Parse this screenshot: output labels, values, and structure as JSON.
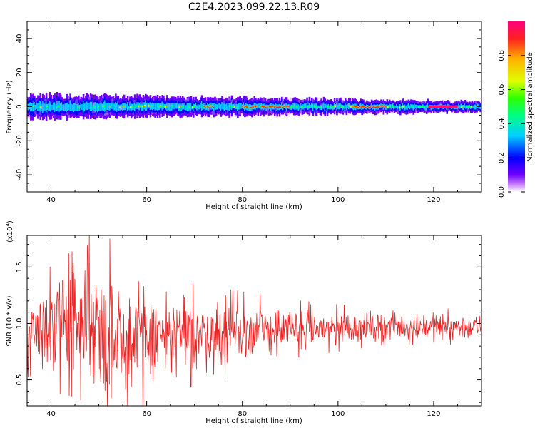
{
  "title": "C2E4.2023.099.22.13.R09",
  "chart_data": [
    {
      "type": "heatmap",
      "xlabel": "Height of straight line (km)",
      "ylabel": "Frequency (Hz)",
      "xlim": [
        35,
        130
      ],
      "ylim": [
        -50,
        50
      ],
      "xticks": [
        40,
        60,
        80,
        100,
        120
      ],
      "yticks": [
        -40,
        -20,
        0,
        20,
        40
      ],
      "xtick_labels": [
        "40",
        "60",
        "80",
        "100",
        "120"
      ],
      "ytick_labels": [
        "-40",
        "-20",
        "0",
        "20",
        "40"
      ],
      "grid": false,
      "description_band": {
        "center_hz": 0,
        "halfwidth_hz_start": 7,
        "halfwidth_hz_end": 3,
        "hot_segments_km": [
          [
            72,
            74
          ],
          [
            80,
            83
          ],
          [
            84,
            90
          ],
          [
            103,
            107
          ],
          [
            107,
            110
          ],
          [
            119,
            125
          ]
        ]
      },
      "colorbar": {
        "label": "Normalized spectral amplitude",
        "range": [
          0,
          1
        ],
        "ticks": [
          0.0,
          0.2,
          0.4,
          0.6,
          0.8
        ],
        "tick_labels": [
          "0.0",
          "0.2",
          "0.4",
          "0.6",
          "0.8"
        ],
        "colors": [
          "#ffffff",
          "#cc88ff",
          "#7000ff",
          "#0000ff",
          "#00d0ff",
          "#00ff80",
          "#30ff00",
          "#e0ff00",
          "#ffb000",
          "#ff2020",
          "#ff0080"
        ]
      }
    },
    {
      "type": "line",
      "xlabel": "Height of straight line (km)",
      "ylabel": "SNR (10 * v/v)",
      "yscale_label": "(x10",
      "yscale_exp": "4",
      "yscale_close": ")",
      "xlim": [
        35,
        130
      ],
      "ylim": [
        0.27,
        1.78
      ],
      "xticks": [
        40,
        60,
        80,
        100,
        120
      ],
      "yticks": [
        0.5,
        1.0,
        1.5
      ],
      "xtick_labels": [
        "40",
        "60",
        "80",
        "100",
        "120"
      ],
      "ytick_labels": [
        "0.5",
        "1.0",
        "1.5"
      ],
      "grid": false,
      "series": [
        {
          "color": "#ee2222",
          "envelope": [
            {
              "x": 35,
              "upper": 1.3,
              "lower": 0.55
            },
            {
              "x": 45,
              "upper": 1.5,
              "lower": 0.5
            },
            {
              "x": 50,
              "upper": 1.55,
              "lower": 0.4
            },
            {
              "x": 55,
              "upper": 1.45,
              "lower": 0.35
            },
            {
              "x": 60,
              "upper": 1.3,
              "lower": 0.45
            },
            {
              "x": 70,
              "upper": 1.25,
              "lower": 0.55
            },
            {
              "x": 80,
              "upper": 1.2,
              "lower": 0.65
            },
            {
              "x": 90,
              "upper": 1.15,
              "lower": 0.75
            },
            {
              "x": 100,
              "upper": 1.12,
              "lower": 0.8
            },
            {
              "x": 110,
              "upper": 1.1,
              "lower": 0.85
            },
            {
              "x": 120,
              "upper": 1.1,
              "lower": 0.85
            },
            {
              "x": 130,
              "upper": 1.08,
              "lower": 0.85
            }
          ],
          "peaks": [
            {
              "x": 48.0,
              "y": 1.78
            },
            {
              "x": 52.3,
              "y": 1.75
            },
            {
              "x": 52.6,
              "y": 0.34
            },
            {
              "x": 59.2,
              "y": 0.27
            },
            {
              "x": 56.8,
              "y": 0.44
            },
            {
              "x": 44.6,
              "y": 1.53
            },
            {
              "x": 39.8,
              "y": 1.5
            },
            {
              "x": 35.2,
              "y": 0.53
            }
          ]
        }
      ]
    }
  ]
}
